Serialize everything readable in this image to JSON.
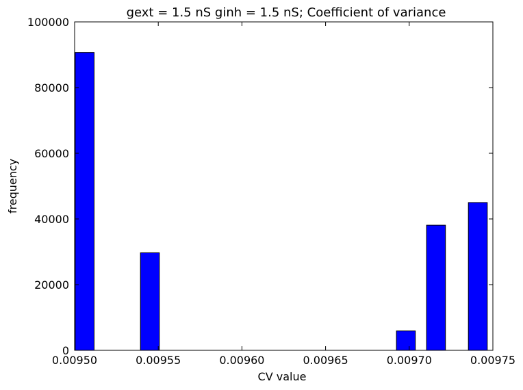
{
  "chart_data": {
    "type": "bar",
    "title": "gext = 1.5 nS ginh = 1.5 nS; Coefficient of variance",
    "xlabel": "CV value",
    "ylabel": "frequency",
    "xlim": [
      0.0095,
      0.00975
    ],
    "ylim": [
      0,
      100000
    ],
    "xticks": [
      0.0095,
      0.00955,
      0.0096,
      0.00965,
      0.0097,
      0.00975
    ],
    "xtick_labels": [
      "0.00950",
      "0.00955",
      "0.00960",
      "0.00965",
      "0.00970",
      "0.00975"
    ],
    "yticks": [
      0,
      20000,
      40000,
      60000,
      80000,
      100000
    ],
    "ytick_labels": [
      "0",
      "20000",
      "40000",
      "60000",
      "80000",
      "100000"
    ],
    "bar_width": 1.13e-05,
    "bars": [
      {
        "x": 0.009506,
        "value": 90700
      },
      {
        "x": 0.009545,
        "value": 29700
      },
      {
        "x": 0.009698,
        "value": 5900
      },
      {
        "x": 0.009716,
        "value": 38100
      },
      {
        "x": 0.009741,
        "value": 45000
      }
    ],
    "colors": {
      "bar": "#0000ff",
      "edge": "#000000"
    },
    "grid": false,
    "legend": "none"
  }
}
